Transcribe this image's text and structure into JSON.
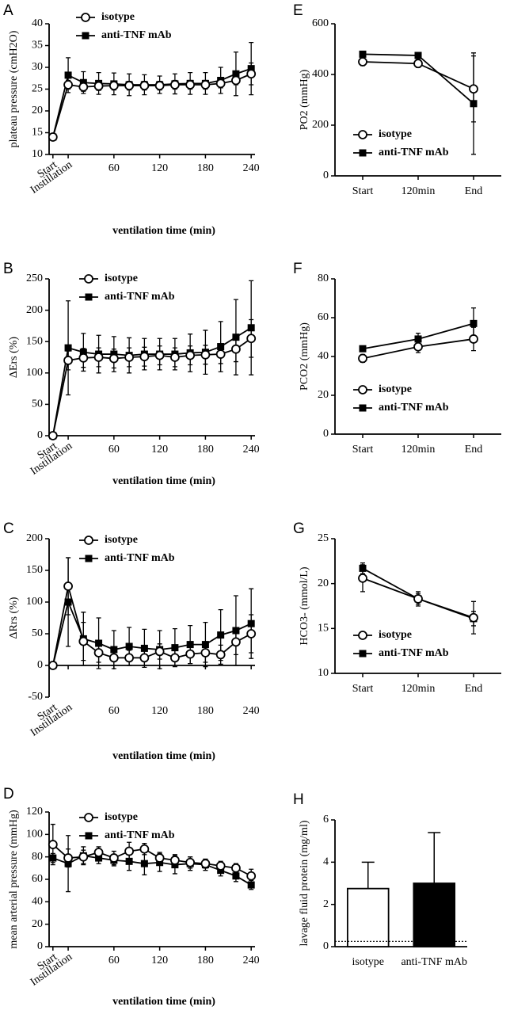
{
  "chart_data": [
    {
      "type": "line",
      "panel": "A",
      "ylabel": "plateau pressure (cmH2O)",
      "xlabel": "ventilation time (min)",
      "x": [
        -20,
        0,
        20,
        40,
        60,
        80,
        100,
        120,
        140,
        160,
        180,
        200,
        220,
        240
      ],
      "xlim": [
        -25,
        245
      ],
      "xticks": [
        {
          "value": -20,
          "label": "Start"
        },
        {
          "value": 0,
          "label": "Instillation"
        },
        60,
        120,
        180,
        240
      ],
      "ylim": [
        10,
        40
      ],
      "yticks": [
        10,
        15,
        20,
        25,
        30,
        35,
        40
      ],
      "series": [
        {
          "name": "isotype",
          "color": "#000000",
          "marker": "open-circle",
          "values": [
            14,
            26,
            25.5,
            25.7,
            25.8,
            25.8,
            25.8,
            25.8,
            26,
            26,
            26,
            26.3,
            27,
            28.5
          ],
          "errors": [
            0,
            1,
            1,
            1,
            1,
            1,
            1,
            1,
            1,
            1,
            1,
            1,
            1,
            2.5
          ]
        },
        {
          "name": "anti-TNF mAb",
          "color": "#000000",
          "marker": "filled-square",
          "values": [
            14,
            28.2,
            26.5,
            26.3,
            26.2,
            26,
            26,
            26,
            26.2,
            26.3,
            26.3,
            27,
            28.5,
            29.7
          ],
          "errors": [
            0.5,
            4,
            2.5,
            2.5,
            2.5,
            2.5,
            2.3,
            2,
            2.3,
            2.5,
            2.5,
            3,
            5,
            6
          ]
        }
      ]
    },
    {
      "type": "line",
      "panel": "B",
      "ylabel": "ΔErs (%)",
      "xlabel": "ventilation time (min)",
      "x": [
        -20,
        0,
        20,
        40,
        60,
        80,
        100,
        120,
        140,
        160,
        180,
        200,
        220,
        240
      ],
      "xlim": [
        -25,
        245
      ],
      "xticks": [
        {
          "value": -20,
          "label": "Start"
        },
        {
          "value": 0,
          "label": "Instillation"
        },
        60,
        120,
        180,
        240
      ],
      "ylim": [
        0,
        250
      ],
      "yticks": [
        0,
        50,
        100,
        150,
        200,
        250
      ],
      "series": [
        {
          "name": "isotype",
          "color": "#000000",
          "marker": "open-circle",
          "values": [
            0,
            120,
            124,
            125,
            123,
            125,
            126,
            128,
            125,
            128,
            129,
            130,
            138,
            155
          ],
          "errors": [
            0,
            15,
            15,
            15,
            15,
            15,
            15,
            15,
            15,
            15,
            15,
            15,
            20,
            30
          ]
        },
        {
          "name": "anti-TNF mAb",
          "color": "#000000",
          "marker": "filled-square",
          "values": [
            0,
            140,
            133,
            130,
            130,
            128,
            130,
            130,
            130,
            132,
            133,
            142,
            157,
            172
          ],
          "errors": [
            0,
            75,
            30,
            30,
            28,
            28,
            25,
            25,
            25,
            30,
            35,
            40,
            60,
            75
          ]
        }
      ]
    },
    {
      "type": "line",
      "panel": "C",
      "ylabel": "ΔRrs (%)",
      "xlabel": "ventilation time (min)",
      "x": [
        -20,
        0,
        20,
        40,
        60,
        80,
        100,
        120,
        140,
        160,
        180,
        200,
        220,
        240
      ],
      "xlim": [
        -25,
        245
      ],
      "xticks": [
        {
          "value": -20,
          "label": "Start"
        },
        {
          "value": 0,
          "label": "Instillation"
        },
        60,
        120,
        180,
        240
      ],
      "ylim": [
        -50,
        200
      ],
      "yticks": [
        -50,
        0,
        50,
        100,
        150,
        200
      ],
      "series": [
        {
          "name": "isotype",
          "color": "#000000",
          "marker": "open-circle",
          "values": [
            0,
            125,
            38,
            20,
            12,
            12,
            12,
            22,
            12,
            18,
            20,
            17,
            37,
            50
          ],
          "errors": [
            0,
            45,
            30,
            15,
            12,
            12,
            12,
            12,
            12,
            15,
            15,
            15,
            20,
            30
          ]
        },
        {
          "name": "anti-TNF mAb",
          "color": "#000000",
          "marker": "filled-square",
          "values": [
            0,
            100,
            42,
            35,
            25,
            30,
            27,
            25,
            28,
            33,
            33,
            48,
            55,
            66
          ],
          "errors": [
            0,
            70,
            42,
            40,
            30,
            30,
            30,
            30,
            30,
            30,
            35,
            40,
            55,
            55
          ]
        }
      ]
    },
    {
      "type": "line",
      "panel": "D",
      "ylabel": "mean arterial pressure (mmHg)",
      "xlabel": "ventilation time (min)",
      "x": [
        -20,
        0,
        20,
        40,
        60,
        80,
        100,
        120,
        140,
        160,
        180,
        200,
        220,
        240
      ],
      "xlim": [
        -25,
        245
      ],
      "xticks": [
        {
          "value": -20,
          "label": "Start"
        },
        {
          "value": 0,
          "label": "Instillation"
        },
        60,
        120,
        180,
        240
      ],
      "ylim": [
        0,
        120
      ],
      "yticks": [
        0,
        20,
        40,
        60,
        80,
        100,
        120
      ],
      "series": [
        {
          "name": "isotype",
          "color": "#000000",
          "marker": "open-circle",
          "values": [
            91,
            79,
            80,
            84,
            79,
            85,
            87,
            79,
            77,
            75,
            74,
            72,
            70,
            63
          ],
          "errors": [
            18,
            8,
            6,
            5,
            6,
            8,
            5,
            5,
            5,
            5,
            4,
            4,
            4,
            6
          ]
        },
        {
          "name": "anti-TNF mAb",
          "color": "#000000",
          "marker": "filled-square",
          "values": [
            79,
            74,
            81,
            79,
            77,
            76,
            74,
            75,
            73,
            74,
            73,
            68,
            63,
            55
          ],
          "errors": [
            4,
            25,
            8,
            5,
            5,
            8,
            10,
            8,
            8,
            6,
            5,
            5,
            5,
            4
          ]
        }
      ]
    },
    {
      "type": "line",
      "panel": "E",
      "ylabel": "PO2 (mmHg)",
      "categories": [
        "Start",
        "120min",
        "End"
      ],
      "ylim": [
        0,
        600
      ],
      "yticks": [
        0,
        200,
        400,
        600
      ],
      "series": [
        {
          "name": "isotype",
          "color": "#000000",
          "marker": "open-circle",
          "values": [
            450,
            443,
            343
          ],
          "errors": [
            15,
            15,
            130
          ]
        },
        {
          "name": "anti-TNF mAb",
          "color": "#000000",
          "marker": "filled-square",
          "values": [
            480,
            475,
            285
          ],
          "errors": [
            10,
            10,
            200
          ]
        }
      ]
    },
    {
      "type": "line",
      "panel": "F",
      "ylabel": "PCO2 (mmHg)",
      "categories": [
        "Start",
        "120min",
        "End"
      ],
      "ylim": [
        0,
        80
      ],
      "yticks": [
        0,
        20,
        40,
        60,
        80
      ],
      "series": [
        {
          "name": "isotype",
          "color": "#000000",
          "marker": "open-circle",
          "values": [
            39,
            45,
            49
          ],
          "errors": [
            2,
            3,
            6
          ]
        },
        {
          "name": "anti-TNF mAb",
          "color": "#000000",
          "marker": "filled-square",
          "values": [
            44,
            49,
            57
          ],
          "errors": [
            1,
            3,
            8
          ]
        }
      ]
    },
    {
      "type": "line",
      "panel": "G",
      "ylabel": "HCO3- (mmol/L)",
      "categories": [
        "Start",
        "120min",
        "End"
      ],
      "ylim": [
        10,
        25
      ],
      "yticks": [
        10,
        15,
        20,
        25
      ],
      "series": [
        {
          "name": "isotype",
          "color": "#000000",
          "marker": "open-circle",
          "values": [
            20.6,
            18.3,
            16.2
          ],
          "errors": [
            1.5,
            0.8,
            1.8
          ]
        },
        {
          "name": "anti-TNF mAb",
          "color": "#000000",
          "marker": "filled-square",
          "values": [
            21.7,
            18.3,
            16.1
          ],
          "errors": [
            0.6,
            0.6,
            0.8
          ]
        }
      ]
    },
    {
      "type": "bar",
      "panel": "H",
      "ylabel": "lavage fluid protein (mg/ml)",
      "categories": [
        "isotype",
        "anti-TNF mAb"
      ],
      "values": [
        2.75,
        3.0
      ],
      "errors": [
        1.25,
        2.4
      ],
      "colors": [
        "#ffffff",
        "#000000"
      ],
      "reference_line": 0.25,
      "ylim": [
        0,
        6
      ],
      "yticks": [
        0,
        2,
        4,
        6
      ]
    }
  ]
}
